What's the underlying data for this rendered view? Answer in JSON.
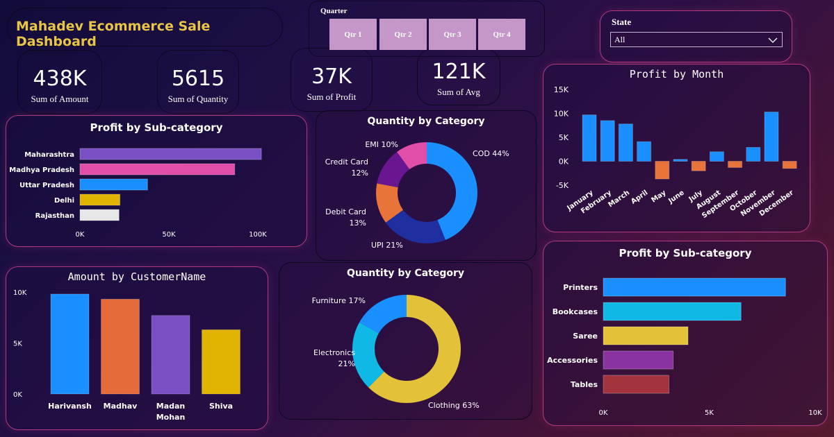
{
  "header": {
    "title": "Mahadev Ecommerce Sale Dashboard",
    "title_color": "#e8c547"
  },
  "kpis": [
    {
      "value": "438K",
      "label": "Sum of Amount"
    },
    {
      "value": "5615",
      "label": "Sum of Quantity"
    },
    {
      "value": "37K",
      "label": "Sum of Profit"
    },
    {
      "value": "121K",
      "label": "Sum of Avg"
    }
  ],
  "quarter_slicer": {
    "label": "Quarter",
    "options": [
      "Qtr 1",
      "Qtr 2",
      "Qtr 3",
      "Qtr 4"
    ],
    "button_color": "#c596c8"
  },
  "state_slicer": {
    "label": "State",
    "selected": "All",
    "icon": "chevron-down-icon"
  },
  "chart_data": [
    {
      "id": "profit_by_state",
      "type": "bar",
      "orientation": "horizontal",
      "title": "Profit by Sub-category",
      "categories": [
        "Maharashtra",
        "Madhya Pradesh",
        "Uttar Pradesh",
        "Delhi",
        "Rajasthan"
      ],
      "values": [
        102000,
        87000,
        38000,
        22500,
        22000
      ],
      "colors": [
        "#7b4fc4",
        "#e04ea8",
        "#1a8fff",
        "#e0b400",
        "#e6e6e6"
      ],
      "xticks": [
        "0K",
        "50K",
        "100K"
      ],
      "xlim": [
        0,
        100000
      ]
    },
    {
      "id": "quantity_by_payment",
      "type": "pie",
      "donut": true,
      "title": "Quantity by Category",
      "labels": [
        "COD",
        "UPI",
        "Debit Card",
        "Credit Card",
        "EMI"
      ],
      "values": [
        44,
        21,
        13,
        12,
        10
      ],
      "colors": [
        "#1a8fff",
        "#1f2fa0",
        "#e8743a",
        "#6a1690",
        "#e04ea8"
      ],
      "data_labels": [
        "COD 44%",
        "UPI 21%",
        "Debit Card 13%",
        "Credit Card 12%",
        "EMI 10%"
      ]
    },
    {
      "id": "profit_by_month",
      "type": "bar",
      "title": "Profit by Month",
      "categories": [
        "January",
        "February",
        "March",
        "April",
        "May",
        "June",
        "July",
        "August",
        "September",
        "October",
        "November",
        "December"
      ],
      "values": [
        9700,
        8500,
        7800,
        4100,
        -3700,
        400,
        -2000,
        2000,
        -1300,
        2900,
        10300,
        -1500
      ],
      "positive_color": "#1a8fff",
      "negative_color": "#e8743a",
      "yticks": [
        "15K",
        "10K",
        "5K",
        "0K",
        "-5K"
      ],
      "ylim": [
        -5000,
        15000
      ]
    },
    {
      "id": "amount_by_customer",
      "type": "bar",
      "title": "Amount by CustomerName",
      "categories": [
        "Harivansh",
        "Madhav",
        "Madan Mohan",
        "Shiva"
      ],
      "values": [
        9800,
        9300,
        7700,
        6300
      ],
      "colors": [
        "#1a8fff",
        "#e66b3a",
        "#7b4fc4",
        "#e0b400"
      ],
      "yticks": [
        "10K",
        "5K",
        "0K"
      ],
      "ylim": [
        0,
        10000
      ]
    },
    {
      "id": "quantity_by_category",
      "type": "pie",
      "donut": true,
      "title": "Quantity by Category",
      "labels": [
        "Clothing",
        "Electronics",
        "Furniture"
      ],
      "values": [
        63,
        21,
        17
      ],
      "colors": [
        "#e3c23a",
        "#10b8e6",
        "#1a8fff"
      ],
      "data_labels": [
        "Clothing 63%",
        "Electronics 21%",
        "Furniture 17%"
      ]
    },
    {
      "id": "profit_by_subcategory",
      "type": "bar",
      "orientation": "horizontal",
      "title": "Profit by Sub-category",
      "categories": [
        "Printers",
        "Bookcases",
        "Saree",
        "Accessories",
        "Tables"
      ],
      "values": [
        8600,
        6500,
        4000,
        3300,
        3100
      ],
      "colors": [
        "#1a8fff",
        "#10b8e6",
        "#e3c23a",
        "#8a33a0",
        "#a3343e"
      ],
      "xticks": [
        "0K",
        "5K",
        "10K"
      ],
      "xlim": [
        0,
        10000
      ]
    }
  ]
}
